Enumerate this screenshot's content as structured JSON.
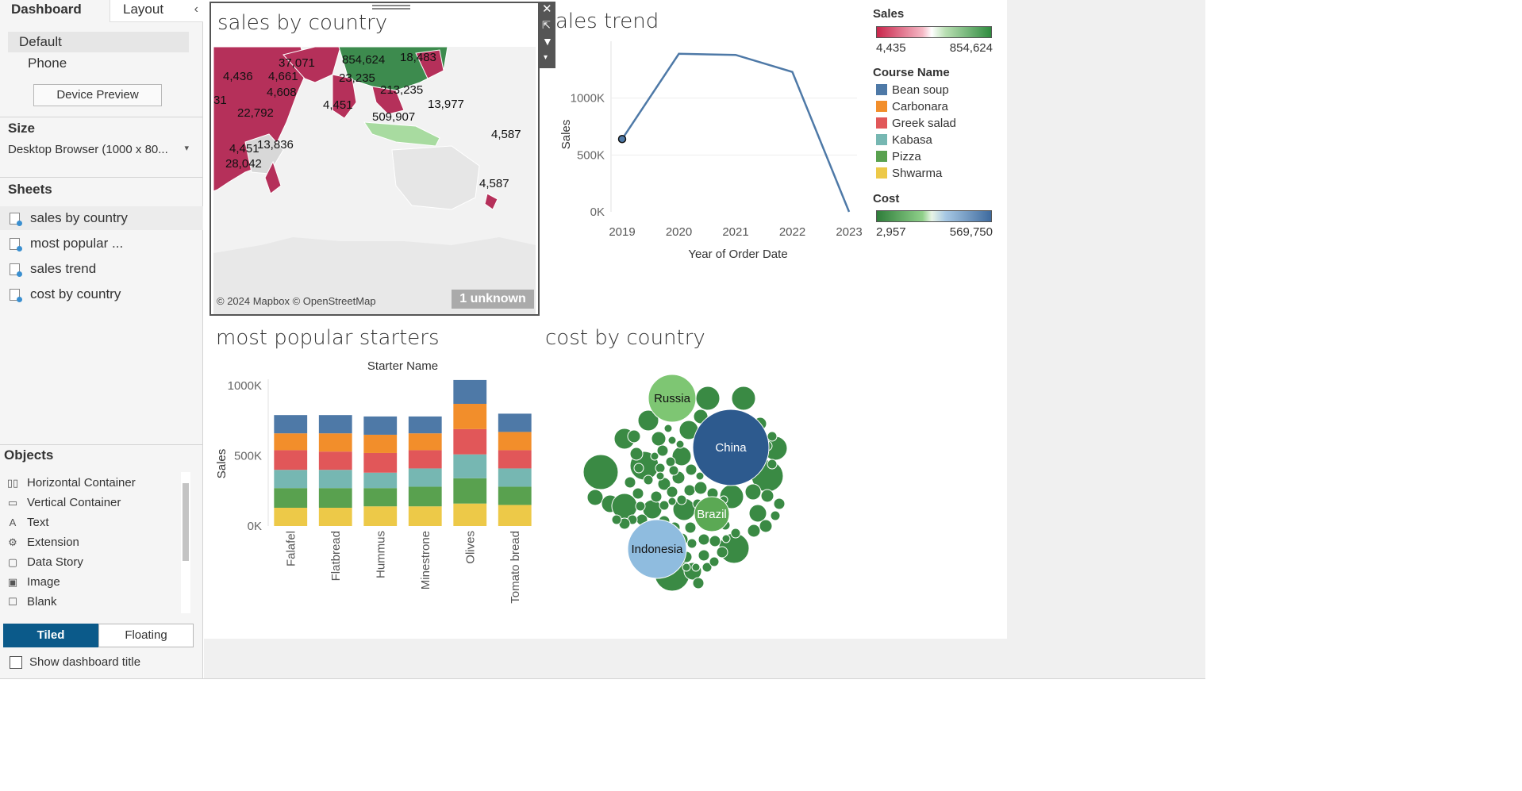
{
  "left_pane": {
    "tabs": {
      "dashboard": "Dashboard",
      "layout": "Layout"
    },
    "collapse_glyph": "‹",
    "devices": {
      "default": "Default",
      "phone": "Phone",
      "preview_button": "Device Preview"
    },
    "size": {
      "title": "Size",
      "value": "Desktop Browser (1000 x 80...",
      "dropdown_glyph": "▾"
    },
    "sheets": {
      "title": "Sheets",
      "items": [
        "sales by country",
        "most popular ...",
        "sales trend",
        "cost by country"
      ]
    },
    "objects": {
      "title": "Objects",
      "items": [
        {
          "label": "Horizontal Container",
          "icon": "horizontal-container-icon",
          "glyph": "▯▯"
        },
        {
          "label": "Vertical Container",
          "icon": "vertical-container-icon",
          "glyph": "▭"
        },
        {
          "label": "Text",
          "icon": "text-icon",
          "glyph": "A"
        },
        {
          "label": "Extension",
          "icon": "extension-icon",
          "glyph": "⚙"
        },
        {
          "label": "Data Story",
          "icon": "data-story-icon",
          "glyph": "▢"
        },
        {
          "label": "Image",
          "icon": "image-icon",
          "glyph": "▣"
        },
        {
          "label": "Blank",
          "icon": "blank-icon",
          "glyph": "☐"
        }
      ],
      "tiled_label": "Tiled",
      "floating_label": "Floating",
      "show_title_label": "Show dashboard title"
    }
  },
  "colors": {
    "accent": "#0b5a8a",
    "bean_soup": "#4e79a7",
    "carbonara": "#f28e2b",
    "greek_salad": "#e15759",
    "kabasa": "#76b7b2",
    "pizza": "#59a14f",
    "shwarma": "#edc948",
    "map_red": "#b5305a",
    "map_green": "#3d8b4e"
  },
  "sales_by_country": {
    "title": "sales by country",
    "attribution": "© 2024 Mapbox © OpenStreetMap",
    "unknown_badge": "1 unknown",
    "labels": [
      "37,071",
      "854,624",
      "18,483",
      "4,436",
      "4,661",
      "23,235",
      "4,608",
      "213,235",
      "4,451",
      "13,977",
      "22,792",
      "509,907",
      "4,587",
      "13,836",
      "4,451",
      "28,042",
      "4,587",
      "31"
    ]
  },
  "sales_trend": {
    "title": "ales trend",
    "chart_data": {
      "type": "line",
      "x": [
        "2019",
        "2020",
        "2021",
        "2022",
        "2023"
      ],
      "values": [
        640000,
        1390000,
        1380000,
        1230000,
        0
      ],
      "ylabel": "Sales",
      "xlabel": "Year of Order Date",
      "y_ticks": [
        "1000K",
        "500K",
        "0K"
      ],
      "ylim": [
        0,
        1500000
      ]
    }
  },
  "legends": {
    "sales": {
      "title": "Sales",
      "min": "4,435",
      "max": "854,624"
    },
    "course": {
      "title": "Course Name",
      "items": [
        {
          "name": "Bean soup",
          "color": "#4e79a7"
        },
        {
          "name": "Carbonara",
          "color": "#f28e2b"
        },
        {
          "name": "Greek salad",
          "color": "#e15759"
        },
        {
          "name": "Kabasa",
          "color": "#76b7b2"
        },
        {
          "name": "Pizza",
          "color": "#59a14f"
        },
        {
          "name": "Shwarma",
          "color": "#edc948"
        }
      ]
    },
    "cost": {
      "title": "Cost",
      "min": "2,957",
      "max": "569,750"
    }
  },
  "most_popular_starters": {
    "title": "most popular starters",
    "chart_data": {
      "type": "bar",
      "stacked": true,
      "column_header": "Starter Name",
      "ylabel": "Sales",
      "y_ticks": [
        "1000K",
        "500K",
        "0K"
      ],
      "ylim": [
        0,
        1000000
      ],
      "categories": [
        "Falafel",
        "Flatbread",
        "Hummus",
        "Minestrone",
        "Olives",
        "Tomato bread"
      ],
      "series": [
        {
          "name": "Shwarma",
          "values": [
            130000,
            130000,
            140000,
            140000,
            160000,
            150000
          ]
        },
        {
          "name": "Pizza",
          "values": [
            140000,
            140000,
            130000,
            140000,
            180000,
            130000
          ]
        },
        {
          "name": "Kabasa",
          "values": [
            130000,
            130000,
            110000,
            130000,
            170000,
            130000
          ]
        },
        {
          "name": "Greek salad",
          "values": [
            140000,
            130000,
            140000,
            130000,
            180000,
            130000
          ]
        },
        {
          "name": "Carbonara",
          "values": [
            120000,
            130000,
            130000,
            120000,
            180000,
            130000
          ]
        },
        {
          "name": "Bean soup",
          "values": [
            130000,
            130000,
            130000,
            120000,
            170000,
            130000
          ]
        }
      ]
    }
  },
  "cost_by_country": {
    "title": "cost by country",
    "chart_data": {
      "type": "bubble",
      "labeled": [
        "China",
        "Indonesia",
        "Russia",
        "Brazil"
      ]
    }
  }
}
